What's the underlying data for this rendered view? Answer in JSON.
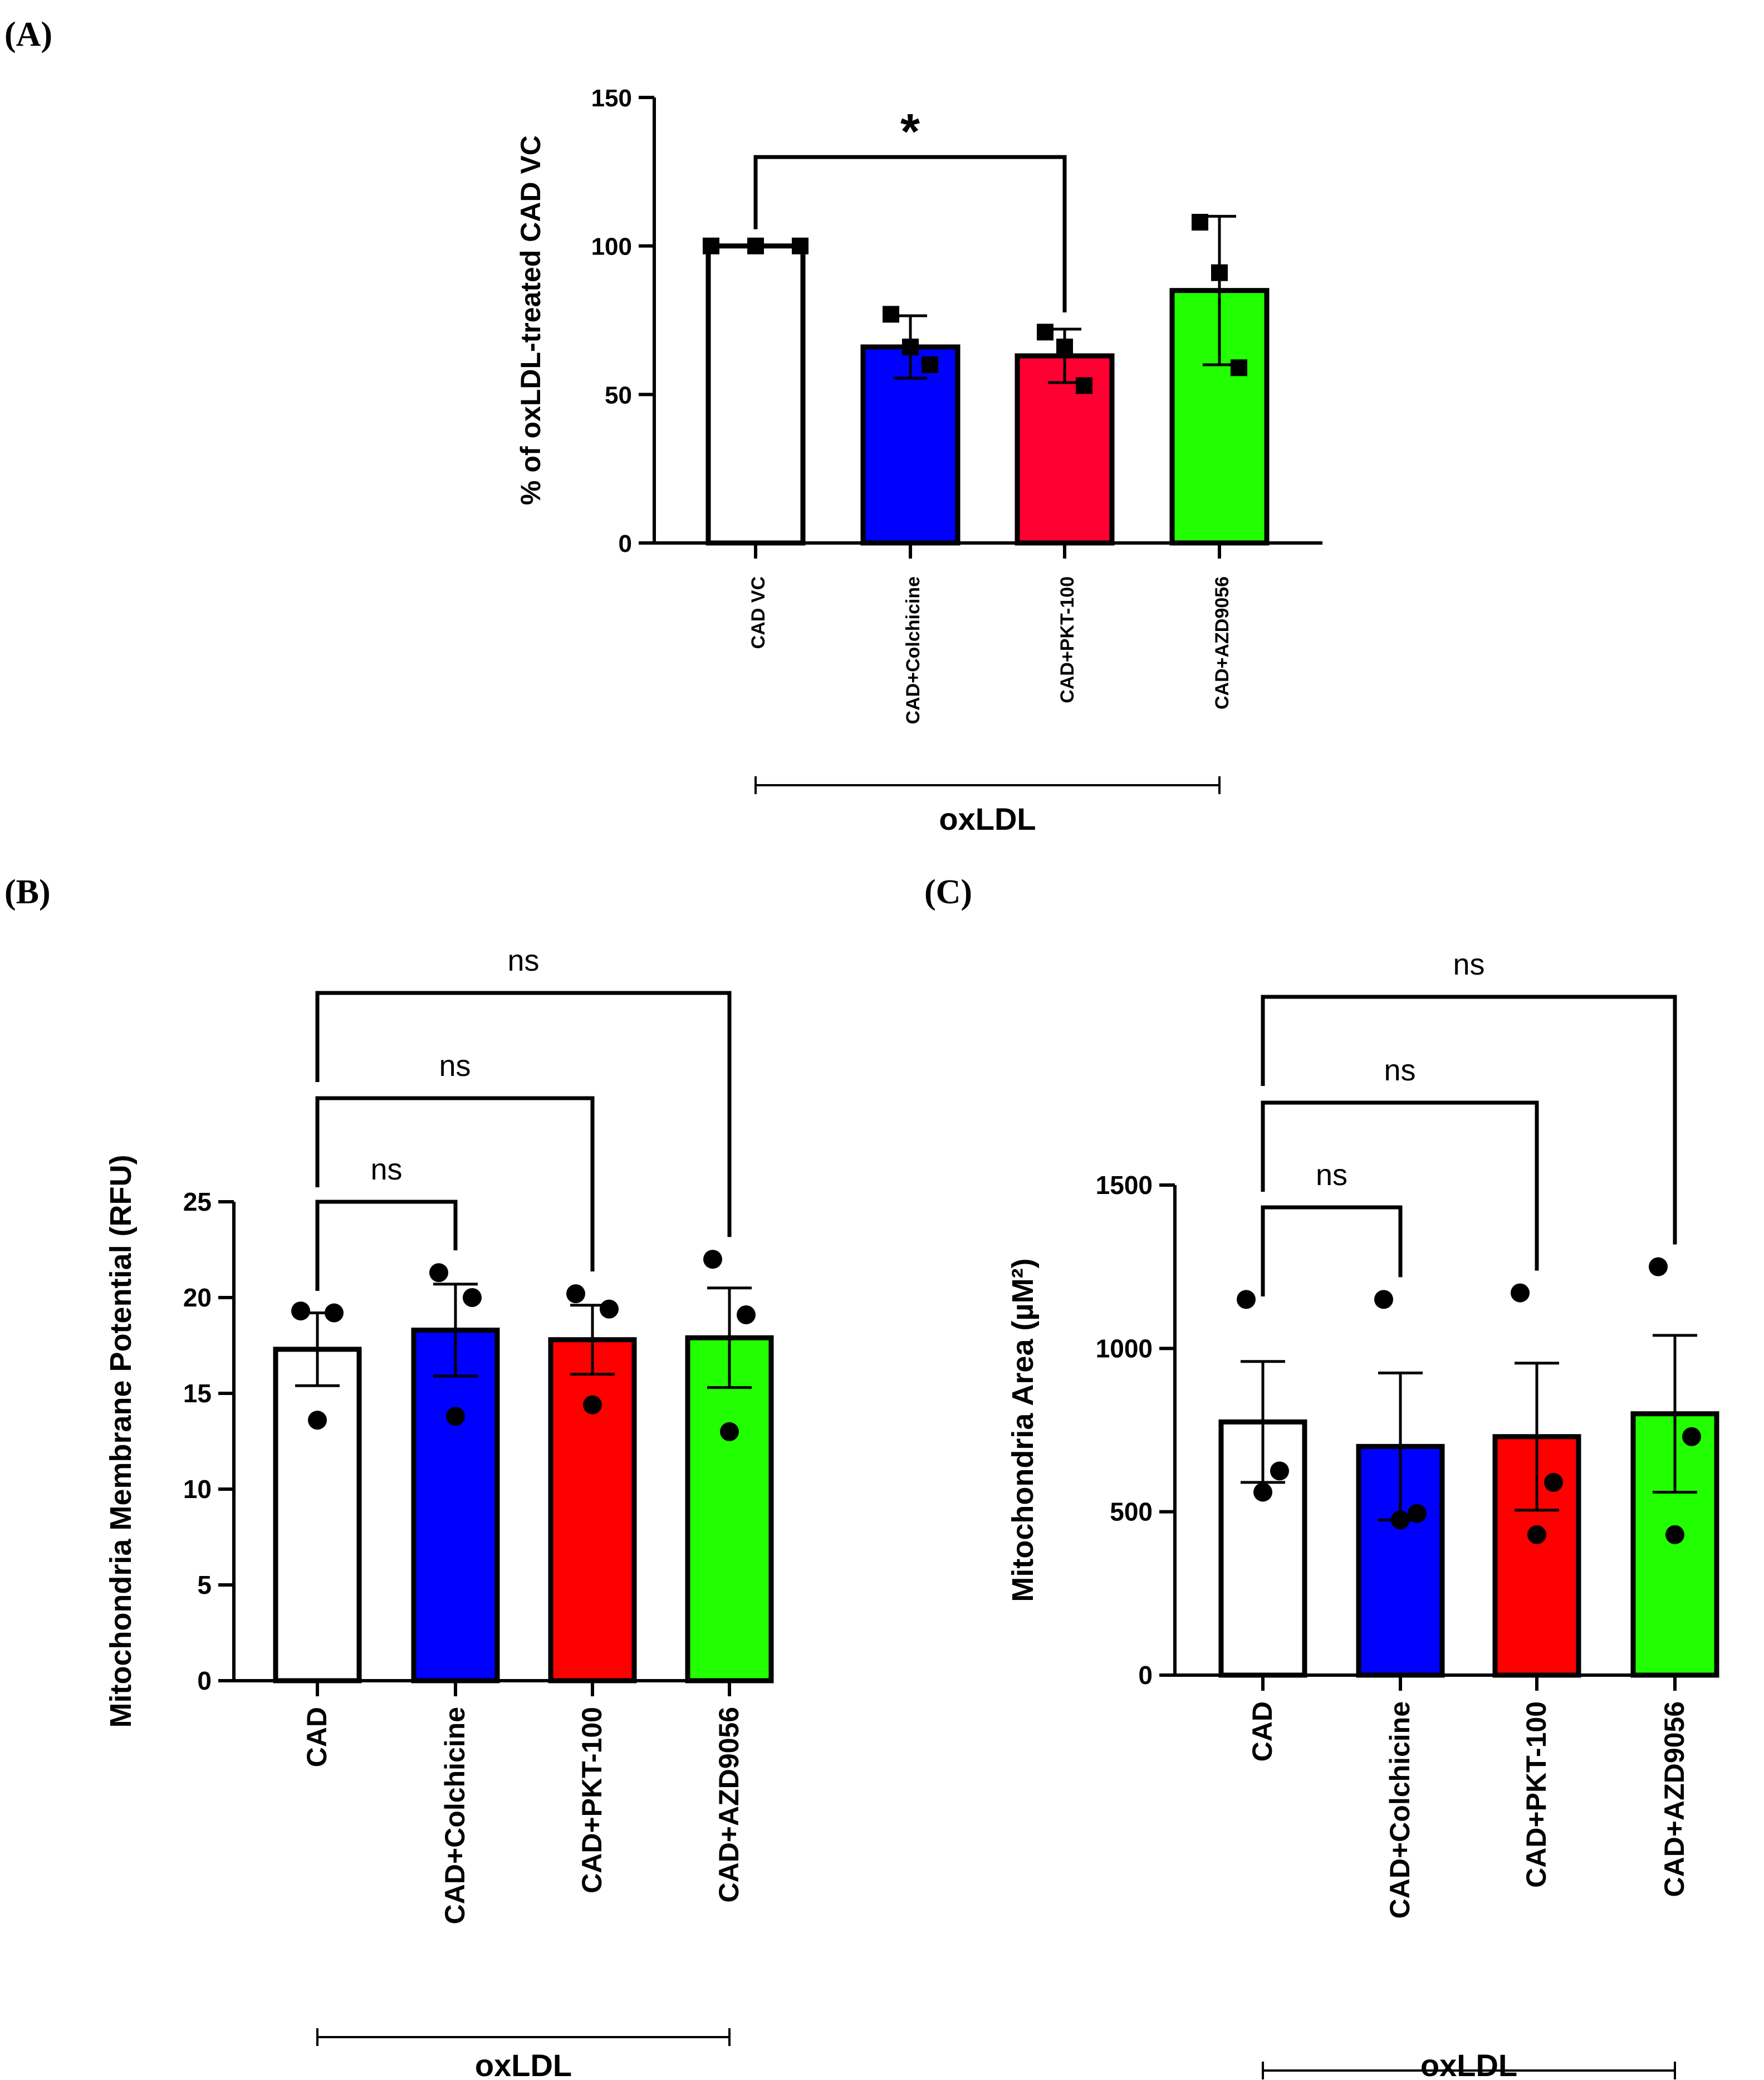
{
  "chart_data": [
    {
      "panel": "(A)",
      "type": "bar",
      "categories": [
        "CAD VC",
        "CAD+Colchicine",
        "CAD+PKT-100",
        "CAD+AZD9056"
      ],
      "values": [
        100,
        66,
        63,
        85
      ],
      "errors": [
        0,
        10.5,
        9,
        25
      ],
      "points": [
        [
          100,
          100,
          100
        ],
        [
          77,
          66,
          60
        ],
        [
          71,
          66,
          53
        ],
        [
          108,
          91,
          59
        ]
      ],
      "colors": [
        "#ffffff",
        "#0000ff",
        "#ff0033",
        "#22ff00"
      ],
      "marker": "square",
      "ylabel": "% of oxLDL-treated CAD VC",
      "yticks": [
        0,
        50,
        100,
        150
      ],
      "ylim": [
        0,
        150
      ],
      "group_label": "oxLDL",
      "comparisons": [
        {
          "from": 0,
          "to": 2,
          "label": "*"
        }
      ]
    },
    {
      "panel": "(B)",
      "type": "bar",
      "categories": [
        "CAD",
        "CAD+Colchicine",
        "CAD+PKT-100",
        "CAD+AZD9056"
      ],
      "values": [
        17.3,
        18.3,
        17.8,
        17.9
      ],
      "errors": [
        1.9,
        2.4,
        1.8,
        2.6
      ],
      "points": [
        [
          19.3,
          19.2,
          13.6
        ],
        [
          21.3,
          20.0,
          13.8
        ],
        [
          20.2,
          19.4,
          14.4
        ],
        [
          22.0,
          19.1,
          13.0
        ]
      ],
      "colors": [
        "#ffffff",
        "#0000ff",
        "#ff0000",
        "#22ff00"
      ],
      "marker": "circle",
      "ylabel": "Mitochondria Membrane Potential (RFU)",
      "yticks": [
        0,
        5,
        10,
        15,
        20,
        25
      ],
      "ylim": [
        0,
        25
      ],
      "group_label": "oxLDL",
      "comparisons": [
        {
          "from": 0,
          "to": 1,
          "label": "ns"
        },
        {
          "from": 0,
          "to": 2,
          "label": "ns"
        },
        {
          "from": 0,
          "to": 3,
          "label": "ns"
        }
      ]
    },
    {
      "panel": "(C)",
      "type": "bar",
      "categories": [
        "CAD",
        "CAD+Colchicine",
        "CAD+PKT-100",
        "CAD+AZD9056"
      ],
      "values": [
        775,
        700,
        730,
        800
      ],
      "errors": [
        185,
        225,
        225,
        240
      ],
      "points": [
        [
          1150,
          625,
          560
        ],
        [
          1150,
          495,
          475
        ],
        [
          1170,
          590,
          430
        ],
        [
          1250,
          730,
          430
        ]
      ],
      "colors": [
        "#ffffff",
        "#0000ff",
        "#ff0000",
        "#22ff00"
      ],
      "marker": "circle",
      "ylabel": "Mitochondria Area (µM²)",
      "yticks": [
        0,
        500,
        1000,
        1500
      ],
      "ylim": [
        0,
        1500
      ],
      "group_label": "oxLDL",
      "comparisons": [
        {
          "from": 0,
          "to": 1,
          "label": "ns"
        },
        {
          "from": 0,
          "to": 2,
          "label": "ns"
        },
        {
          "from": 0,
          "to": 3,
          "label": "ns"
        }
      ]
    }
  ]
}
